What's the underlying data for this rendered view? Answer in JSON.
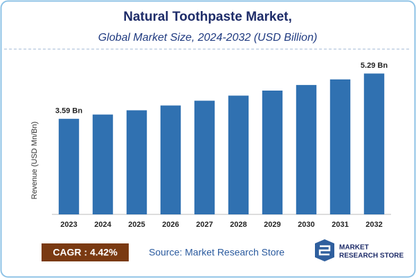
{
  "chart_data": {
    "type": "bar",
    "title": "Natural Toothpaste Market,",
    "subtitle": "Global Market Size, 2024-2032 (USD Billion)",
    "y_label": "Revenue (USD Mn/Bn)",
    "categories": [
      "2023",
      "2024",
      "2025",
      "2026",
      "2027",
      "2028",
      "2029",
      "2030",
      "2031",
      "2032"
    ],
    "values": [
      3.59,
      3.75,
      3.91,
      4.09,
      4.27,
      4.46,
      4.65,
      4.86,
      5.07,
      5.29
    ],
    "value_labels": [
      "3.59 Bn",
      null,
      null,
      null,
      null,
      null,
      null,
      null,
      null,
      "5.29 Bn"
    ],
    "color": "#3071b1",
    "ylim": [
      0,
      6
    ],
    "badge": "CAGR : 4.42%",
    "source": "Source: Market Research Store",
    "logo_lines": [
      "MARKET",
      "RESEARCH STORE"
    ]
  }
}
